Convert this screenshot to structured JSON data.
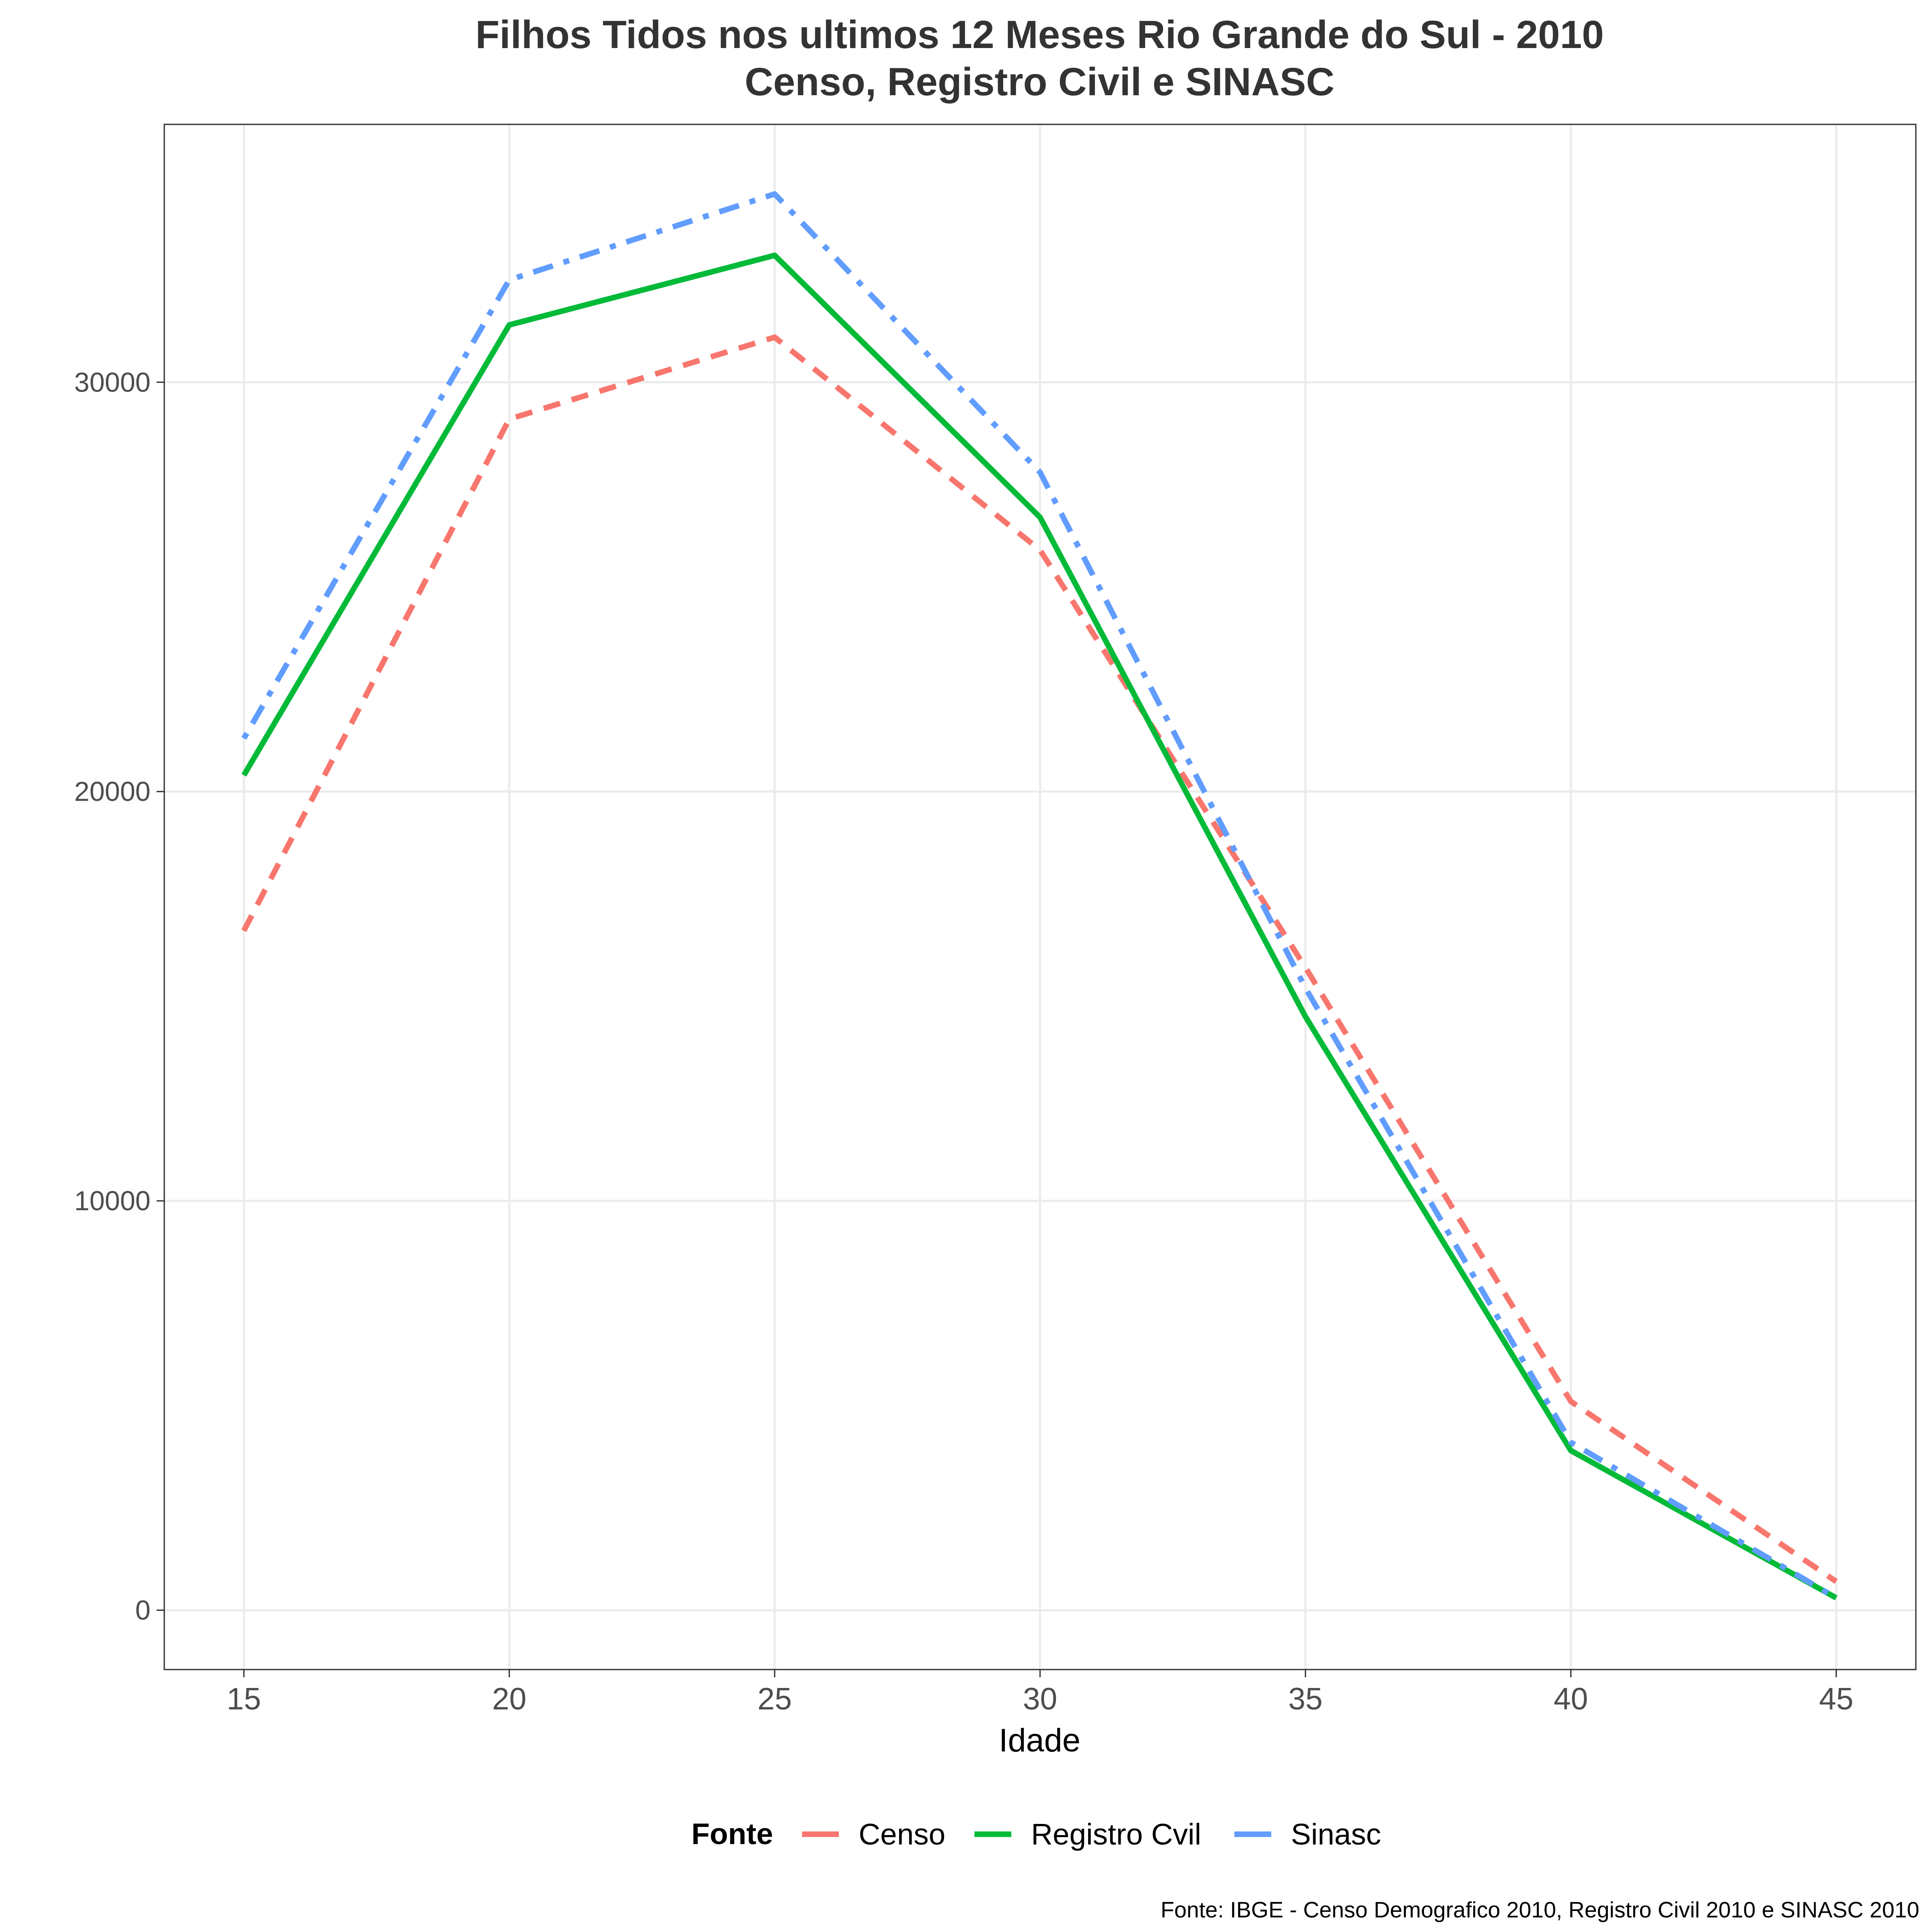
{
  "chart_data": {
    "type": "line",
    "title_line1": "Filhos Tidos nos ultimos 12 Meses Rio Grande do Sul - 2010",
    "title_line2": "Censo, Registro Civil e SINASC",
    "xlabel": "Idade",
    "ylabel": "",
    "x": [
      15,
      20,
      25,
      30,
      35,
      40,
      45
    ],
    "xlim": [
      13.5,
      46.5
    ],
    "ylim": [
      -1450,
      36300
    ],
    "x_ticks": [
      15,
      20,
      25,
      30,
      35,
      40,
      45
    ],
    "y_ticks": [
      0,
      10000,
      20000,
      30000
    ],
    "grid": true,
    "legend_title": "Fonte",
    "legend_position": "bottom",
    "series": [
      {
        "name": "Censo",
        "color": "#F8766D",
        "dash": "dashed",
        "values": [
          16600,
          29100,
          31100,
          25900,
          15700,
          5100,
          700
        ]
      },
      {
        "name": "Registro Cvil",
        "color": "#00BA38",
        "dash": "solid",
        "values": [
          20400,
          31400,
          33100,
          26700,
          14500,
          3900,
          300
        ]
      },
      {
        "name": "Sinasc",
        "color": "#619CFF",
        "dash": "dotdash",
        "values": [
          21300,
          32500,
          34600,
          27800,
          15200,
          4100,
          300
        ]
      }
    ],
    "caption": "Fonte: IBGE - Censo Demografico 2010, Registro Civil 2010 e SINASC 2010"
  }
}
